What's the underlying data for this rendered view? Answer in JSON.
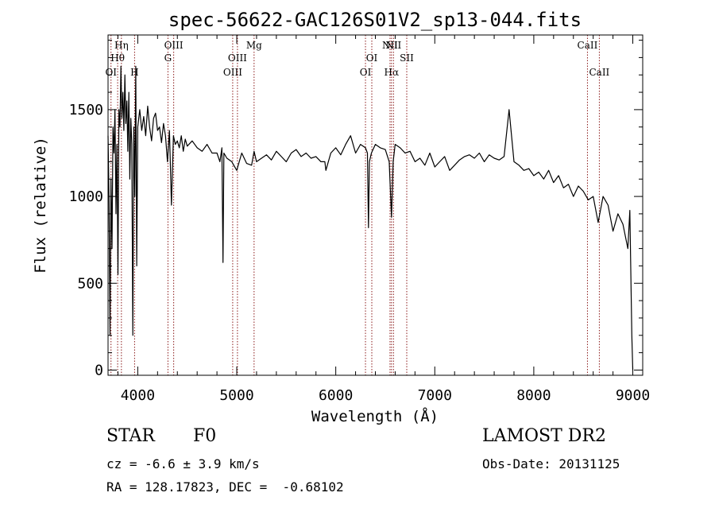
{
  "chart_data": {
    "type": "line",
    "title": "spec-56622-GAC126S01V2_sp13-044.fits",
    "xlabel": "Wavelength (Å)",
    "ylabel": "Flux (relative)",
    "xlim": [
      3700,
      9100
    ],
    "ylim": [
      -30,
      1930
    ],
    "x_ticks": [
      4000,
      5000,
      6000,
      7000,
      8000,
      9000
    ],
    "x_tick_labels": [
      "4000",
      "5000",
      "6000",
      "7000",
      "8000",
      "9000"
    ],
    "y_ticks": [
      0,
      500,
      1000,
      1500
    ],
    "y_tick_labels": [
      "0",
      "500",
      "1000",
      "1500"
    ],
    "grid": false,
    "line_color": "#000000",
    "marker_color": "#8b1a1a",
    "series": [
      {
        "x": [
          3700,
          3710,
          3720,
          3730,
          3740,
          3750,
          3760,
          3770,
          3780,
          3790,
          3800,
          3810,
          3820,
          3830,
          3840,
          3850,
          3860,
          3870,
          3880,
          3890,
          3900,
          3910,
          3920,
          3930,
          3940,
          3950,
          3960,
          3970,
          3980,
          3990,
          4000,
          4020,
          4040,
          4060,
          4080,
          4100,
          4120,
          4140,
          4160,
          4180,
          4200,
          4220,
          4240,
          4260,
          4280,
          4300,
          4320,
          4340,
          4360,
          4380,
          4400,
          4420,
          4440,
          4460,
          4480,
          4500,
          4550,
          4600,
          4650,
          4700,
          4750,
          4800,
          4830,
          4850,
          4861,
          4870,
          4900,
          4950,
          5000,
          5050,
          5100,
          5150,
          5175,
          5200,
          5250,
          5300,
          5350,
          5400,
          5450,
          5500,
          5550,
          5600,
          5650,
          5700,
          5750,
          5800,
          5850,
          5890,
          5900,
          5950,
          6000,
          6050,
          6100,
          6150,
          6200,
          6250,
          6300,
          6320,
          6330,
          6340,
          6360,
          6400,
          6450,
          6500,
          6540,
          6563,
          6580,
          6600,
          6650,
          6700,
          6750,
          6800,
          6850,
          6900,
          6950,
          7000,
          7050,
          7100,
          7150,
          7200,
          7250,
          7300,
          7350,
          7400,
          7450,
          7500,
          7550,
          7600,
          7650,
          7700,
          7750,
          7800,
          7850,
          7900,
          7950,
          8000,
          8050,
          8100,
          8150,
          8200,
          8250,
          8300,
          8350,
          8400,
          8450,
          8500,
          8550,
          8600,
          8650,
          8700,
          8750,
          8800,
          8850,
          8900,
          8950,
          8970,
          8990,
          9000
        ],
        "y": [
          1350,
          1000,
          200,
          1100,
          700,
          1400,
          1250,
          1500,
          900,
          1300,
          550,
          1500,
          1400,
          1750,
          1450,
          1600,
          1380,
          1700,
          1420,
          1550,
          1260,
          1600,
          1100,
          1450,
          1300,
          200,
          1400,
          1000,
          1750,
          600,
          1400,
          1500,
          1380,
          1460,
          1350,
          1520,
          1400,
          1320,
          1450,
          1480,
          1380,
          1400,
          1310,
          1420,
          1350,
          1200,
          1380,
          950,
          1350,
          1300,
          1320,
          1280,
          1350,
          1260,
          1330,
          1290,
          1320,
          1280,
          1260,
          1300,
          1250,
          1250,
          1200,
          1280,
          620,
          1250,
          1220,
          1200,
          1150,
          1250,
          1190,
          1180,
          1260,
          1200,
          1220,
          1240,
          1210,
          1260,
          1230,
          1200,
          1250,
          1270,
          1230,
          1250,
          1220,
          1230,
          1200,
          1200,
          1150,
          1250,
          1280,
          1240,
          1300,
          1350,
          1250,
          1300,
          1280,
          1250,
          820,
          1200,
          1250,
          1300,
          1280,
          1270,
          1200,
          880,
          1200,
          1300,
          1280,
          1250,
          1260,
          1200,
          1220,
          1180,
          1250,
          1170,
          1200,
          1230,
          1150,
          1180,
          1210,
          1230,
          1240,
          1220,
          1250,
          1200,
          1240,
          1220,
          1210,
          1230,
          1500,
          1200,
          1180,
          1150,
          1160,
          1120,
          1140,
          1100,
          1150,
          1080,
          1120,
          1050,
          1070,
          1000,
          1060,
          1030,
          980,
          1000,
          850,
          1000,
          950,
          800,
          900,
          840,
          700,
          920,
          200,
          0
        ]
      }
    ],
    "line_markers": [
      {
        "label": "OI",
        "x": 3730,
        "row": 3
      },
      {
        "label": "Hθ",
        "x": 3797,
        "row": 2
      },
      {
        "label": "Hη",
        "x": 3835,
        "row": 1
      },
      {
        "label": "H",
        "x": 3968,
        "row": 3
      },
      {
        "label": "G",
        "x": 4305,
        "row": 2
      },
      {
        "label": "OIII",
        "x": 4363,
        "row": 1
      },
      {
        "label": "OIII",
        "x": 4959,
        "row": 3
      },
      {
        "label": "OIII",
        "x": 5007,
        "row": 2
      },
      {
        "label": "Mg",
        "x": 5175,
        "row": 1
      },
      {
        "label": "OI",
        "x": 6300,
        "row": 3
      },
      {
        "label": "OI",
        "x": 6364,
        "row": 2
      },
      {
        "label": "NII",
        "x": 6548,
        "row": 1
      },
      {
        "label": "Hα",
        "x": 6563,
        "row": 3
      },
      {
        "label": "NII",
        "x": 6583,
        "row": 1
      },
      {
        "label": "SII",
        "x": 6717,
        "row": 2
      },
      {
        "label": "CaII",
        "x": 8542,
        "row": 1
      },
      {
        "label": "CaII",
        "x": 8662,
        "row": 3
      }
    ]
  },
  "info": {
    "object_class": "STAR",
    "subclass": "F0",
    "survey": "LAMOST DR2",
    "cz": "cz = -6.6 ± 3.9 km/s",
    "obs_date": "Obs-Date: 20131125",
    "coords": "RA = 128.17823, DEC =  -0.68102"
  }
}
